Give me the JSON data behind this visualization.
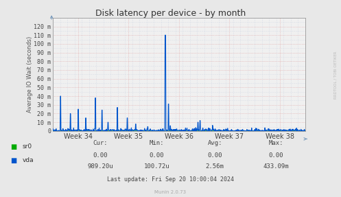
{
  "title": "Disk latency per device - by month",
  "ylabel": "Average IO Wait (seconds)",
  "bg_color": "#e8e8e8",
  "plot_bg_color": "#f0f0f0",
  "line_color_sr0": "#00aa00",
  "line_color_vda": "#0055cc",
  "ytick_labels": [
    "0",
    "10 m",
    "20 m",
    "30 m",
    "40 m",
    "50 m",
    "60 m",
    "70 m",
    "80 m",
    "90 m",
    "100 m",
    "110 m",
    "120 m"
  ],
  "ytick_values": [
    0,
    0.01,
    0.02,
    0.03,
    0.04,
    0.05,
    0.06,
    0.07,
    0.08,
    0.09,
    0.1,
    0.11,
    0.12
  ],
  "ymax": 0.13,
  "week_labels": [
    "Week 34",
    "Week 35",
    "Week 36",
    "Week 37",
    "Week 38"
  ],
  "week_x": [
    0.5,
    1.5,
    2.5,
    3.5,
    4.5
  ],
  "legend_items": [
    {
      "label": "sr0",
      "color": "#00aa00"
    },
    {
      "label": "vda",
      "color": "#0055cc"
    }
  ],
  "footer_text": "Last update: Fri Sep 20 10:00:04 2024",
  "munin_text": "Munin 2.0.73",
  "watermark": "RRDTOOL / TOBI OETIKER",
  "table_headers": [
    "Cur:",
    "Min:",
    "Avg:",
    "Max:"
  ],
  "table_sr0": [
    "0.00",
    "0.00",
    "0.00",
    "0.00"
  ],
  "table_vda": [
    "989.20u",
    "100.72u",
    "2.56m",
    "433.09m"
  ]
}
